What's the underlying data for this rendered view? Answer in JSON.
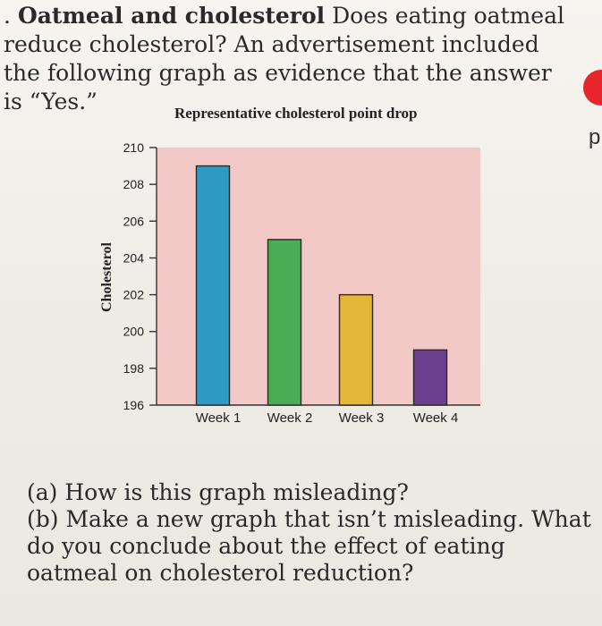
{
  "problem": {
    "bullet": ".",
    "title": "Oatmeal and cholesterol",
    "text": "Does eating oatmeal reduce cholesterol? An advertisement included the following graph as evidence that the answer is “Yes.”"
  },
  "questions": {
    "a": "(a) How is this graph misleading?",
    "b": "(b) Make a new graph that isn’t misleading. What do you conclude about the effect of eating oatmeal on cholesterol reduction?"
  },
  "margin_letter": "p",
  "colors": {
    "plot_bg": "#f2c9c6",
    "week1": "#2f9bc4",
    "week2": "#4bac56",
    "week3": "#e5b53a",
    "week4": "#6b3f8e",
    "red_tab": "#e6262a"
  },
  "chart_data": {
    "type": "bar",
    "title": "Representative cholesterol point drop",
    "xlabel": "",
    "ylabel": "Cholesterol",
    "categories": [
      "Week 1",
      "Week 2",
      "Week 3",
      "Week 4"
    ],
    "values": [
      209,
      205,
      202,
      199
    ],
    "ylim": [
      196,
      210
    ],
    "yticks": [
      196,
      198,
      200,
      202,
      204,
      206,
      208,
      210
    ],
    "ytick_labels": [
      "196",
      "198",
      "200",
      "202",
      "204",
      "206",
      "208",
      "210"
    ],
    "grid": false,
    "legend": "none"
  }
}
